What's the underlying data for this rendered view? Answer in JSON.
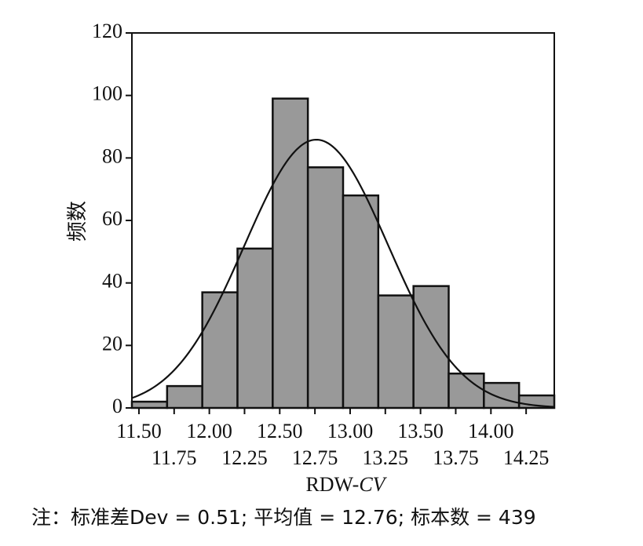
{
  "chart_data": {
    "type": "bar",
    "subtype": "histogram with normal curve",
    "bins": [
      {
        "x0": 11.45,
        "x1": 11.7,
        "value": 2
      },
      {
        "x0": 11.7,
        "x1": 11.95,
        "value": 7
      },
      {
        "x0": 11.95,
        "x1": 12.2,
        "value": 37
      },
      {
        "x0": 12.2,
        "x1": 12.45,
        "value": 51
      },
      {
        "x0": 12.45,
        "x1": 12.7,
        "value": 99
      },
      {
        "x0": 12.7,
        "x1": 12.95,
        "value": 77
      },
      {
        "x0": 12.95,
        "x1": 13.2,
        "value": 68
      },
      {
        "x0": 13.2,
        "x1": 13.45,
        "value": 36
      },
      {
        "x0": 13.45,
        "x1": 13.7,
        "value": 39
      },
      {
        "x0": 13.7,
        "x1": 13.95,
        "value": 11
      },
      {
        "x0": 13.95,
        "x1": 14.2,
        "value": 8
      },
      {
        "x0": 14.2,
        "x1": 14.45,
        "value": 4
      }
    ],
    "curve": {
      "type": "normal",
      "mean": 12.76,
      "std": 0.51,
      "n": 439,
      "bin_width": 0.25
    },
    "xlim": [
      11.45,
      14.45
    ],
    "ylim": [
      0,
      120
    ],
    "yticks": [
      0,
      20,
      40,
      60,
      80,
      100,
      120
    ],
    "xticks_row1": [
      "11.50",
      "12.00",
      "12.50",
      "13.00",
      "13.50",
      "14.00"
    ],
    "xticks_row2": [
      "11.75",
      "12.25",
      "12.75",
      "13.25",
      "13.75",
      "14.25"
    ],
    "xticks_row1_values": [
      11.5,
      12.0,
      12.5,
      13.0,
      13.5,
      14.0
    ],
    "xticks_row2_values": [
      11.75,
      12.25,
      12.75,
      13.25,
      13.75,
      14.25
    ],
    "xlabel_main": "RDW-",
    "xlabel_italic": "CV",
    "ylabel": "频数",
    "bar_color": "#999999",
    "bar_edge_color": "#111111",
    "curve_color": "#111111"
  },
  "note": "注：标准差Dev = 0.51; 平均值 = 12.76; 标本数 = 439"
}
